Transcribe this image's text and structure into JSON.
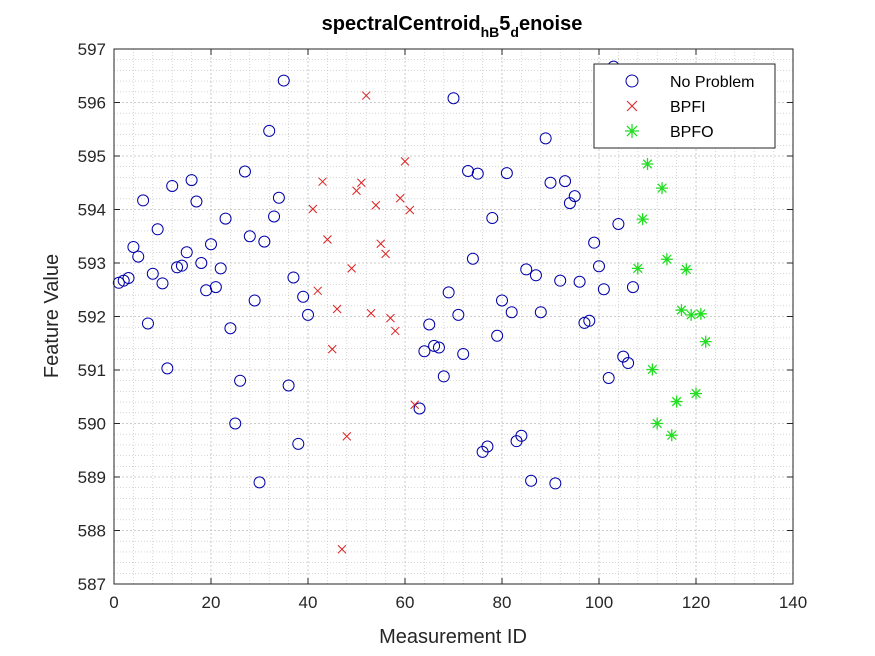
{
  "chart_data": {
    "type": "scatter",
    "title": {
      "base": "spectralCentroid",
      "sub1": "hB",
      "mid": "5",
      "sub2": "d",
      "tail": "enoise"
    },
    "xlabel": "Measurement ID",
    "ylabel": "Feature Value",
    "xlim": [
      0,
      140
    ],
    "ylim": [
      587,
      597
    ],
    "xticks": [
      0,
      20,
      40,
      60,
      80,
      100,
      120,
      140
    ],
    "yticks": [
      587,
      588,
      589,
      590,
      591,
      592,
      593,
      594,
      595,
      596,
      597
    ],
    "grid": true,
    "minor_grid": true,
    "legend_position": "top-right",
    "series": [
      {
        "name": "No Problem",
        "marker": "circle",
        "color": "#0000aa",
        "points": [
          [
            1,
            592.63
          ],
          [
            2,
            592.67
          ],
          [
            3,
            592.72
          ],
          [
            4,
            593.3
          ],
          [
            5,
            593.12
          ],
          [
            6,
            594.17
          ],
          [
            7,
            591.87
          ],
          [
            8,
            592.8
          ],
          [
            9,
            593.63
          ],
          [
            10,
            592.62
          ],
          [
            11,
            591.03
          ],
          [
            12,
            594.44
          ],
          [
            13,
            592.92
          ],
          [
            14,
            592.95
          ],
          [
            15,
            593.2
          ],
          [
            16,
            594.55
          ],
          [
            17,
            594.15
          ],
          [
            18,
            593.0
          ],
          [
            19,
            592.49
          ],
          [
            20,
            593.35
          ],
          [
            21,
            592.55
          ],
          [
            22,
            592.9
          ],
          [
            23,
            593.83
          ],
          [
            24,
            591.78
          ],
          [
            25,
            590.0
          ],
          [
            26,
            590.8
          ],
          [
            27,
            594.71
          ],
          [
            28,
            593.5
          ],
          [
            29,
            592.3
          ],
          [
            30,
            588.9
          ],
          [
            31,
            593.4
          ],
          [
            32,
            595.47
          ],
          [
            33,
            593.87
          ],
          [
            34,
            594.22
          ],
          [
            35,
            596.41
          ],
          [
            36,
            590.71
          ],
          [
            37,
            592.73
          ],
          [
            38,
            589.62
          ],
          [
            39,
            592.37
          ],
          [
            40,
            592.03
          ],
          [
            63,
            590.28
          ],
          [
            64,
            591.35
          ],
          [
            65,
            591.85
          ],
          [
            66,
            591.45
          ],
          [
            67,
            591.42
          ],
          [
            68,
            590.88
          ],
          [
            69,
            592.45
          ],
          [
            70,
            596.08
          ],
          [
            71,
            592.03
          ],
          [
            72,
            591.3
          ],
          [
            73,
            594.72
          ],
          [
            74,
            593.08
          ],
          [
            75,
            594.67
          ],
          [
            76,
            589.47
          ],
          [
            77,
            589.57
          ],
          [
            78,
            593.84
          ],
          [
            79,
            591.64
          ],
          [
            80,
            592.3
          ],
          [
            81,
            594.68
          ],
          [
            82,
            592.08
          ],
          [
            83,
            589.67
          ],
          [
            84,
            589.77
          ],
          [
            85,
            592.88
          ],
          [
            86,
            588.93
          ],
          [
            87,
            592.77
          ],
          [
            88,
            592.08
          ],
          [
            89,
            595.33
          ],
          [
            90,
            594.5
          ],
          [
            91,
            588.88
          ],
          [
            92,
            592.67
          ],
          [
            93,
            594.53
          ],
          [
            94,
            594.12
          ],
          [
            95,
            594.25
          ],
          [
            96,
            592.65
          ],
          [
            97,
            591.88
          ],
          [
            98,
            591.92
          ],
          [
            99,
            593.38
          ],
          [
            100,
            592.94
          ],
          [
            101,
            592.51
          ],
          [
            102,
            590.85
          ],
          [
            103,
            596.67
          ],
          [
            104,
            593.73
          ],
          [
            105,
            591.25
          ],
          [
            106,
            591.13
          ],
          [
            107,
            592.55
          ]
        ]
      },
      {
        "name": "BPFI",
        "marker": "x",
        "color": "#dd2222",
        "points": [
          [
            41,
            594.01
          ],
          [
            42,
            592.48
          ],
          [
            43,
            594.52
          ],
          [
            44,
            593.44
          ],
          [
            45,
            591.39
          ],
          [
            46,
            592.14
          ],
          [
            47,
            587.65
          ],
          [
            48,
            589.76
          ],
          [
            49,
            592.9
          ],
          [
            50,
            594.35
          ],
          [
            51,
            594.5
          ],
          [
            52,
            596.13
          ],
          [
            53,
            592.06
          ],
          [
            54,
            594.08
          ],
          [
            55,
            593.36
          ],
          [
            56,
            593.17
          ],
          [
            57,
            591.97
          ],
          [
            58,
            591.73
          ],
          [
            59,
            594.21
          ],
          [
            60,
            594.9
          ],
          [
            61,
            593.99
          ],
          [
            62,
            590.35
          ]
        ]
      },
      {
        "name": "BPFO",
        "marker": "asterisk",
        "color": "#22dd22",
        "points": [
          [
            108,
            592.9
          ],
          [
            109,
            593.82
          ],
          [
            110,
            594.85
          ],
          [
            111,
            591.01
          ],
          [
            112,
            590.0
          ],
          [
            113,
            594.4
          ],
          [
            114,
            593.07
          ],
          [
            115,
            589.78
          ],
          [
            116,
            590.41
          ],
          [
            117,
            592.12
          ],
          [
            118,
            592.88
          ],
          [
            119,
            592.03
          ],
          [
            120,
            590.56
          ],
          [
            121,
            592.05
          ],
          [
            122,
            591.53
          ]
        ]
      }
    ]
  }
}
